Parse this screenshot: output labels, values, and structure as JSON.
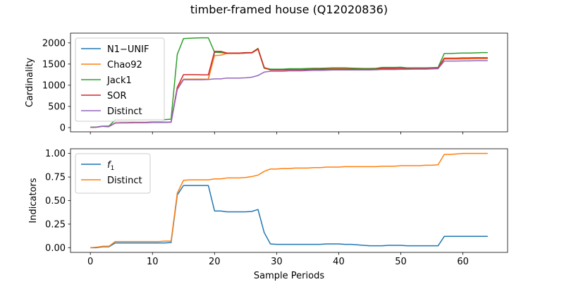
{
  "figure": {
    "title": "timber-framed house (Q12020836)"
  },
  "colors": {
    "blue": "#1f77b4",
    "orange": "#ff7f0e",
    "green": "#2ca02c",
    "red": "#d62728",
    "purple": "#9467bd"
  },
  "chart_data": [
    {
      "type": "line",
      "ylabel": "Cardinality",
      "xlabel": "",
      "xlim": [
        -3.2,
        67.2
      ],
      "ylim": [
        -100,
        2230
      ],
      "xticks": [
        0,
        10,
        20,
        30,
        40,
        50,
        60
      ],
      "yticks": [
        0,
        500,
        1000,
        1500,
        2000
      ],
      "legend": "top-left",
      "grid": false,
      "x": [
        0,
        1,
        2,
        3,
        4,
        5,
        6,
        7,
        8,
        9,
        10,
        11,
        12,
        13,
        14,
        15,
        16,
        17,
        18,
        19,
        20,
        21,
        22,
        23,
        24,
        25,
        26,
        27,
        28,
        29,
        30,
        31,
        32,
        33,
        34,
        35,
        36,
        37,
        38,
        39,
        40,
        41,
        42,
        43,
        44,
        45,
        46,
        47,
        48,
        49,
        50,
        51,
        52,
        53,
        54,
        55,
        56,
        57,
        58,
        59,
        60,
        61,
        62,
        63,
        64
      ],
      "series": [
        {
          "name": "N1−UNIF",
          "color": "#1f77b4",
          "values": [
            5,
            10,
            30,
            25,
            110,
            115,
            115,
            120,
            120,
            120,
            125,
            125,
            125,
            130,
            940,
            1140,
            1145,
            1145,
            1145,
            1145,
            1780,
            1780,
            1750,
            1750,
            1750,
            1760,
            1760,
            1850,
            1400,
            1370,
            1370,
            1370,
            1375,
            1375,
            1375,
            1380,
            1385,
            1385,
            1385,
            1390,
            1390,
            1390,
            1390,
            1385,
            1385,
            1385,
            1390,
            1400,
            1400,
            1400,
            1405,
            1395,
            1400,
            1400,
            1400,
            1405,
            1410,
            1620,
            1620,
            1620,
            1625,
            1625,
            1630,
            1630,
            1630
          ]
        },
        {
          "name": "Chao92",
          "color": "#ff7f0e",
          "values": [
            5,
            10,
            30,
            25,
            110,
            115,
            115,
            120,
            120,
            120,
            125,
            125,
            125,
            130,
            940,
            1140,
            1145,
            1145,
            1145,
            1145,
            1700,
            1710,
            1750,
            1750,
            1750,
            1760,
            1760,
            1850,
            1400,
            1370,
            1370,
            1370,
            1375,
            1375,
            1375,
            1380,
            1385,
            1385,
            1385,
            1390,
            1390,
            1390,
            1390,
            1385,
            1385,
            1385,
            1390,
            1400,
            1400,
            1400,
            1405,
            1395,
            1400,
            1400,
            1400,
            1405,
            1410,
            1620,
            1620,
            1620,
            1625,
            1625,
            1630,
            1630,
            1630
          ]
        },
        {
          "name": "Jack1",
          "color": "#2ca02c",
          "values": [
            10,
            15,
            35,
            35,
            185,
            185,
            185,
            185,
            190,
            190,
            190,
            190,
            190,
            200,
            1730,
            2100,
            2110,
            2115,
            2120,
            2120,
            1780,
            1770,
            1760,
            1760,
            1760,
            1760,
            1770,
            1870,
            1410,
            1380,
            1380,
            1380,
            1390,
            1390,
            1390,
            1395,
            1400,
            1400,
            1405,
            1410,
            1410,
            1410,
            1405,
            1400,
            1395,
            1395,
            1400,
            1420,
            1420,
            1420,
            1425,
            1410,
            1410,
            1410,
            1410,
            1415,
            1420,
            1750,
            1750,
            1755,
            1760,
            1760,
            1765,
            1770,
            1770
          ]
        },
        {
          "name": "SOR",
          "color": "#d62728",
          "values": [
            5,
            10,
            30,
            25,
            110,
            115,
            115,
            120,
            120,
            120,
            125,
            125,
            125,
            130,
            950,
            1250,
            1250,
            1250,
            1245,
            1245,
            1800,
            1800,
            1760,
            1760,
            1760,
            1770,
            1770,
            1860,
            1420,
            1360,
            1360,
            1360,
            1365,
            1365,
            1365,
            1370,
            1375,
            1375,
            1380,
            1380,
            1380,
            1380,
            1380,
            1375,
            1375,
            1375,
            1380,
            1395,
            1395,
            1395,
            1400,
            1390,
            1395,
            1395,
            1395,
            1400,
            1405,
            1640,
            1640,
            1640,
            1645,
            1645,
            1650,
            1650,
            1650
          ]
        },
        {
          "name": "Distinct",
          "color": "#9467bd",
          "values": [
            5,
            10,
            30,
            25,
            105,
            110,
            110,
            115,
            115,
            115,
            120,
            120,
            120,
            125,
            900,
            1130,
            1130,
            1130,
            1130,
            1135,
            1150,
            1150,
            1170,
            1170,
            1170,
            1175,
            1190,
            1230,
            1310,
            1330,
            1330,
            1330,
            1340,
            1340,
            1340,
            1345,
            1350,
            1350,
            1355,
            1360,
            1360,
            1360,
            1360,
            1360,
            1360,
            1360,
            1365,
            1370,
            1370,
            1370,
            1375,
            1375,
            1380,
            1380,
            1380,
            1385,
            1390,
            1570,
            1570,
            1570,
            1575,
            1575,
            1580,
            1580,
            1580
          ]
        }
      ]
    },
    {
      "type": "line",
      "ylabel": "Indicators",
      "xlabel": "Sample Periods",
      "xlim": [
        -3.2,
        67.2
      ],
      "ylim": [
        -0.05,
        1.05
      ],
      "xticks": [
        0,
        10,
        20,
        30,
        40,
        50,
        60
      ],
      "yticks": [
        "0.00",
        "0.25",
        "0.50",
        "0.75",
        "1.00"
      ],
      "legend": "top-left",
      "grid": false,
      "x": [
        0,
        1,
        2,
        3,
        4,
        5,
        6,
        7,
        8,
        9,
        10,
        11,
        12,
        13,
        14,
        15,
        16,
        17,
        18,
        19,
        20,
        21,
        22,
        23,
        24,
        25,
        26,
        27,
        28,
        29,
        30,
        31,
        32,
        33,
        34,
        35,
        36,
        37,
        38,
        39,
        40,
        41,
        42,
        43,
        44,
        45,
        46,
        47,
        48,
        49,
        50,
        51,
        52,
        53,
        54,
        55,
        56,
        57,
        58,
        59,
        60,
        61,
        62,
        63,
        64
      ],
      "series": [
        {
          "name": "f1",
          "color": "#1f77b4",
          "values": [
            0.0,
            0.0,
            0.01,
            0.01,
            0.05,
            0.05,
            0.05,
            0.05,
            0.05,
            0.05,
            0.05,
            0.05,
            0.05,
            0.055,
            0.56,
            0.66,
            0.66,
            0.66,
            0.66,
            0.66,
            0.39,
            0.39,
            0.38,
            0.38,
            0.38,
            0.38,
            0.385,
            0.405,
            0.16,
            0.04,
            0.035,
            0.035,
            0.035,
            0.035,
            0.035,
            0.035,
            0.035,
            0.035,
            0.04,
            0.04,
            0.04,
            0.035,
            0.035,
            0.03,
            0.025,
            0.02,
            0.02,
            0.02,
            0.025,
            0.025,
            0.025,
            0.02,
            0.02,
            0.02,
            0.02,
            0.02,
            0.02,
            0.12,
            0.12,
            0.12,
            0.12,
            0.12,
            0.12,
            0.12,
            0.12
          ]
        },
        {
          "name": "Distinct",
          "color": "#ff7f0e",
          "values": [
            0.0,
            0.005,
            0.015,
            0.015,
            0.065,
            0.065,
            0.065,
            0.065,
            0.065,
            0.065,
            0.065,
            0.065,
            0.07,
            0.07,
            0.58,
            0.715,
            0.72,
            0.72,
            0.72,
            0.72,
            0.73,
            0.73,
            0.74,
            0.74,
            0.74,
            0.745,
            0.755,
            0.77,
            0.81,
            0.835,
            0.835,
            0.84,
            0.84,
            0.845,
            0.845,
            0.845,
            0.85,
            0.85,
            0.855,
            0.855,
            0.855,
            0.86,
            0.86,
            0.86,
            0.86,
            0.86,
            0.86,
            0.865,
            0.865,
            0.865,
            0.87,
            0.87,
            0.87,
            0.87,
            0.875,
            0.875,
            0.88,
            0.99,
            0.99,
            0.995,
            1.0,
            1.0,
            1.0,
            1.0,
            1.0
          ]
        }
      ]
    }
  ]
}
